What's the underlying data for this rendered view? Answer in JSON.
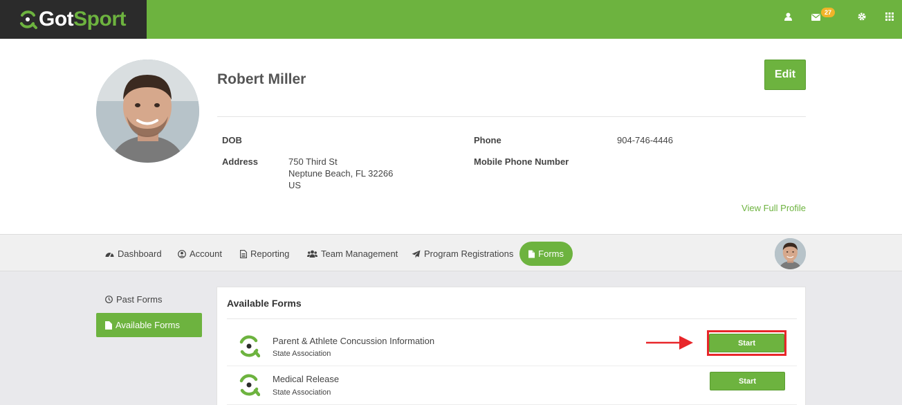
{
  "brand": {
    "got": "Got",
    "sport": "Sport",
    "accent": "#6db33f",
    "logo_bg": "#2b2b2b"
  },
  "topbar": {
    "icons": [
      "user-icon",
      "envelope-icon",
      "gear-icon",
      "grid-icon"
    ],
    "message_count": "27"
  },
  "profile": {
    "name": "Robert Miller",
    "edit_label": "Edit",
    "dob_label": "DOB",
    "dob_value": "",
    "address_label": "Address",
    "address_lines": [
      "750 Third St",
      "Neptune Beach, FL 32266",
      "US"
    ],
    "phone_label": "Phone",
    "phone_value": "904-746-4446",
    "mobile_label": "Mobile Phone Number",
    "mobile_value": "",
    "view_full_profile": "View Full Profile"
  },
  "nav": {
    "tabs": [
      {
        "label": "Dashboard",
        "icon": "dashboard-icon"
      },
      {
        "label": "Account",
        "icon": "user-circle-icon"
      },
      {
        "label": "Reporting",
        "icon": "document-icon"
      },
      {
        "label": "Team Management",
        "icon": "users-icon"
      },
      {
        "label": "Program Registrations",
        "icon": "paper-plane-icon"
      },
      {
        "label": "Forms",
        "icon": "file-icon",
        "active": true
      }
    ]
  },
  "sidebar": {
    "past_forms": "Past Forms",
    "available_forms": "Available Forms"
  },
  "forms": {
    "title": "Available Forms",
    "items": [
      {
        "name": "Parent & Athlete Concussion Information",
        "sub": "State Association",
        "action": "Start"
      },
      {
        "name": "Medical Release",
        "sub": "State Association",
        "action": "Start"
      }
    ]
  },
  "annotation_color": "#e8262a"
}
